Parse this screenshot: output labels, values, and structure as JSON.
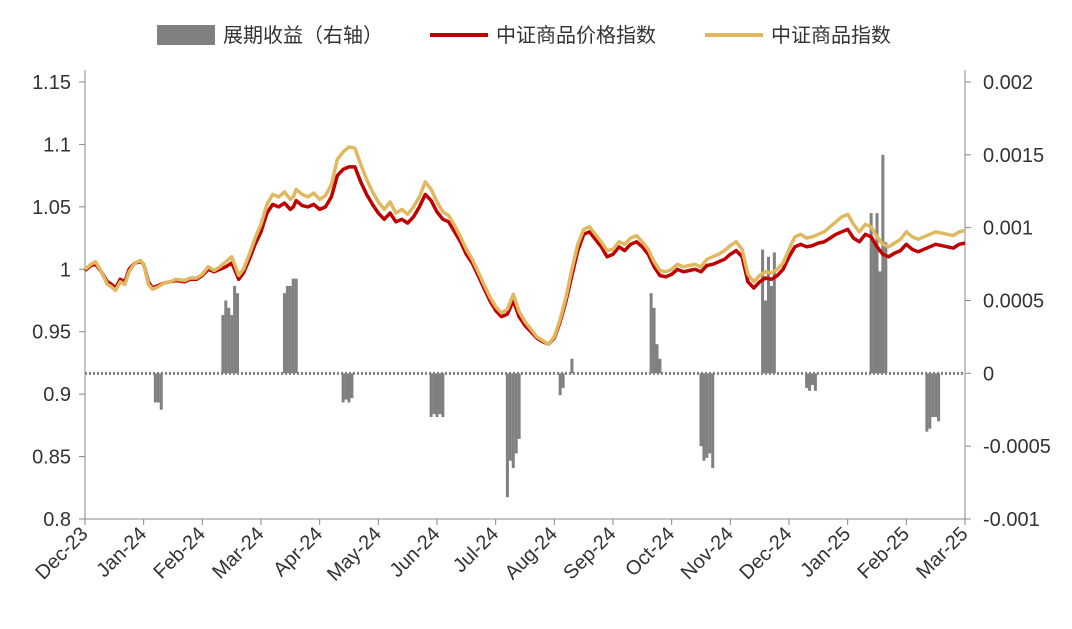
{
  "chart_data": {
    "type": "line",
    "legend": {
      "position": "top",
      "items": [
        {
          "label": "展期收益（右轴）",
          "kind": "bar",
          "color": "#808080"
        },
        {
          "label": "中证商品价格指数",
          "kind": "line",
          "color": "#c00000"
        },
        {
          "label": "中证商品指数",
          "kind": "line",
          "color": "#e0b860"
        }
      ]
    },
    "x_labels": [
      "Dec-23",
      "Jan-24",
      "Feb-24",
      "Mar-24",
      "Apr-24",
      "May-24",
      "Jun-24",
      "Jul-24",
      "Aug-24",
      "Sep-24",
      "Oct-24",
      "Nov-24",
      "Dec-24",
      "Jan-25",
      "Feb-25",
      "Mar-25"
    ],
    "left_axis": {
      "min": 0.8,
      "max": 1.15,
      "ticks": [
        0.8,
        0.85,
        0.9,
        0.95,
        1,
        1.05,
        1.1,
        1.15
      ],
      "tick_labels": [
        "0.8",
        "0.85",
        "0.9",
        "0.95",
        "1",
        "1.05",
        "1.1",
        "1.15"
      ]
    },
    "right_axis": {
      "min": -0.001,
      "max": 0.002,
      "ticks": [
        -0.001,
        -0.0005,
        0,
        0.0005,
        0.001,
        0.0015,
        0.002
      ],
      "tick_labels": [
        "-0.001",
        "-0.0005",
        "0",
        "0.0005",
        "0.001",
        "0.0015",
        "0.002"
      ]
    },
    "grid": false,
    "series": [
      {
        "name": "中证商品价格指数",
        "axis": "left",
        "color": "#c00000",
        "x": [
          0,
          0.1,
          0.18,
          0.28,
          0.38,
          0.45,
          0.52,
          0.6,
          0.68,
          0.75,
          0.85,
          0.95,
          1.0,
          1.08,
          1.15,
          1.25,
          1.35,
          1.45,
          1.55,
          1.7,
          1.8,
          1.9,
          2.0,
          2.1,
          2.2,
          2.3,
          2.4,
          2.5,
          2.55,
          2.62,
          2.7,
          2.8,
          2.9,
          3.0,
          3.1,
          3.2,
          3.3,
          3.4,
          3.5,
          3.55,
          3.6,
          3.7,
          3.8,
          3.9,
          4.0,
          4.1,
          4.2,
          4.3,
          4.4,
          4.5,
          4.6,
          4.7,
          4.8,
          4.9,
          5.0,
          5.1,
          5.2,
          5.3,
          5.4,
          5.5,
          5.6,
          5.7,
          5.8,
          5.9,
          6.0,
          6.1,
          6.2,
          6.3,
          6.4,
          6.5,
          6.6,
          6.7,
          6.8,
          6.9,
          7.0,
          7.1,
          7.2,
          7.3,
          7.4,
          7.5,
          7.6,
          7.7,
          7.8,
          7.9,
          8.0,
          8.1,
          8.2,
          8.3,
          8.4,
          8.5,
          8.6,
          8.7,
          8.8,
          8.9,
          9.0,
          9.1,
          9.2,
          9.3,
          9.4,
          9.5,
          9.6,
          9.7,
          9.8,
          9.9,
          10.0,
          10.1,
          10.2,
          10.3,
          10.4,
          10.5,
          10.6,
          10.7,
          10.8,
          10.9,
          11.0,
          11.1,
          11.2,
          11.3,
          11.4,
          11.5,
          11.6,
          11.7,
          11.8,
          11.9,
          12.0,
          12.1,
          12.2,
          12.3,
          12.4,
          12.5,
          12.6,
          12.7,
          12.8,
          12.9,
          13.0,
          13.1,
          13.2,
          13.3,
          13.4,
          13.5,
          13.6,
          13.7,
          13.8,
          13.9,
          14.0,
          14.1,
          14.2,
          14.3,
          14.4,
          14.5,
          14.6,
          14.7,
          14.8,
          14.9,
          15.0
        ],
        "values": [
          0.999,
          1.003,
          1.004,
          0.998,
          0.99,
          0.988,
          0.985,
          0.992,
          0.99,
          1.0,
          1.005,
          1.006,
          1.004,
          0.99,
          0.985,
          0.987,
          0.989,
          0.99,
          0.991,
          0.99,
          0.992,
          0.992,
          0.995,
          1.0,
          0.998,
          1.0,
          1.002,
          1.005,
          1.0,
          0.992,
          0.997,
          1.008,
          1.02,
          1.03,
          1.045,
          1.052,
          1.05,
          1.053,
          1.048,
          1.05,
          1.055,
          1.051,
          1.05,
          1.052,
          1.048,
          1.05,
          1.058,
          1.075,
          1.08,
          1.082,
          1.082,
          1.07,
          1.06,
          1.052,
          1.045,
          1.04,
          1.045,
          1.038,
          1.04,
          1.037,
          1.042,
          1.05,
          1.06,
          1.055,
          1.046,
          1.04,
          1.038,
          1.03,
          1.022,
          1.012,
          1.005,
          0.995,
          0.985,
          0.975,
          0.967,
          0.962,
          0.964,
          0.975,
          0.962,
          0.955,
          0.95,
          0.945,
          0.942,
          0.94,
          0.945,
          0.958,
          0.975,
          0.995,
          1.015,
          1.028,
          1.03,
          1.024,
          1.018,
          1.01,
          1.012,
          1.018,
          1.015,
          1.02,
          1.022,
          1.018,
          1.012,
          1.002,
          0.995,
          0.994,
          0.996,
          1.0,
          0.998,
          0.999,
          1.0,
          0.998,
          1.003,
          1.004,
          1.006,
          1.008,
          1.012,
          1.015,
          1.01,
          0.99,
          0.985,
          0.99,
          0.993,
          0.992,
          0.995,
          1.0,
          1.01,
          1.018,
          1.02,
          1.018,
          1.019,
          1.021,
          1.022,
          1.025,
          1.028,
          1.03,
          1.032,
          1.025,
          1.022,
          1.028,
          1.026,
          1.018,
          1.012,
          1.01,
          1.013,
          1.015,
          1.02,
          1.016,
          1.014,
          1.016,
          1.018,
          1.02,
          1.019,
          1.018,
          1.017,
          1.02,
          1.021
        ]
      },
      {
        "name": "中证商品指数",
        "axis": "left",
        "color": "#e0b860",
        "x": [
          0,
          0.1,
          0.18,
          0.28,
          0.38,
          0.45,
          0.52,
          0.6,
          0.68,
          0.75,
          0.85,
          0.95,
          1.0,
          1.08,
          1.15,
          1.25,
          1.35,
          1.45,
          1.55,
          1.7,
          1.8,
          1.9,
          2.0,
          2.1,
          2.2,
          2.3,
          2.4,
          2.5,
          2.55,
          2.62,
          2.7,
          2.8,
          2.9,
          3.0,
          3.1,
          3.2,
          3.3,
          3.4,
          3.5,
          3.55,
          3.6,
          3.7,
          3.8,
          3.9,
          4.0,
          4.1,
          4.2,
          4.3,
          4.4,
          4.5,
          4.6,
          4.7,
          4.8,
          4.9,
          5.0,
          5.1,
          5.2,
          5.3,
          5.4,
          5.5,
          5.6,
          5.7,
          5.8,
          5.9,
          6.0,
          6.1,
          6.2,
          6.3,
          6.4,
          6.5,
          6.6,
          6.7,
          6.8,
          6.9,
          7.0,
          7.1,
          7.2,
          7.3,
          7.4,
          7.5,
          7.6,
          7.7,
          7.8,
          7.9,
          8.0,
          8.1,
          8.2,
          8.3,
          8.4,
          8.5,
          8.6,
          8.7,
          8.8,
          8.9,
          9.0,
          9.1,
          9.2,
          9.3,
          9.4,
          9.5,
          9.6,
          9.7,
          9.8,
          9.9,
          10.0,
          10.1,
          10.2,
          10.3,
          10.4,
          10.5,
          10.6,
          10.7,
          10.8,
          10.9,
          11.0,
          11.1,
          11.2,
          11.3,
          11.4,
          11.5,
          11.6,
          11.7,
          11.8,
          11.9,
          12.0,
          12.1,
          12.2,
          12.3,
          12.4,
          12.5,
          12.6,
          12.7,
          12.8,
          12.9,
          13.0,
          13.1,
          13.2,
          13.3,
          13.4,
          13.5,
          13.6,
          13.7,
          13.8,
          13.9,
          14.0,
          14.1,
          14.2,
          14.3,
          14.4,
          14.5,
          14.6,
          14.7,
          14.8,
          14.9,
          15.0
        ],
        "values": [
          1.0,
          1.004,
          1.006,
          0.998,
          0.988,
          0.986,
          0.983,
          0.99,
          0.988,
          0.998,
          1.005,
          1.007,
          1.004,
          0.988,
          0.984,
          0.986,
          0.989,
          0.99,
          0.992,
          0.991,
          0.993,
          0.993,
          0.996,
          1.002,
          0.999,
          1.002,
          1.006,
          1.01,
          1.004,
          0.995,
          1.0,
          1.012,
          1.025,
          1.036,
          1.052,
          1.06,
          1.058,
          1.062,
          1.056,
          1.058,
          1.064,
          1.06,
          1.058,
          1.061,
          1.056,
          1.059,
          1.068,
          1.088,
          1.094,
          1.098,
          1.097,
          1.084,
          1.072,
          1.062,
          1.054,
          1.048,
          1.054,
          1.045,
          1.048,
          1.044,
          1.05,
          1.058,
          1.07,
          1.064,
          1.054,
          1.046,
          1.043,
          1.035,
          1.026,
          1.016,
          1.008,
          0.998,
          0.988,
          0.978,
          0.97,
          0.965,
          0.968,
          0.98,
          0.966,
          0.958,
          0.952,
          0.946,
          0.943,
          0.94,
          0.946,
          0.96,
          0.978,
          1.0,
          1.02,
          1.032,
          1.034,
          1.028,
          1.022,
          1.015,
          1.016,
          1.022,
          1.02,
          1.025,
          1.027,
          1.022,
          1.016,
          1.006,
          0.999,
          0.998,
          1.0,
          1.004,
          1.002,
          1.003,
          1.004,
          1.002,
          1.008,
          1.01,
          1.012,
          1.015,
          1.019,
          1.022,
          1.016,
          0.996,
          0.99,
          0.995,
          0.998,
          0.997,
          1.0,
          1.005,
          1.016,
          1.026,
          1.028,
          1.025,
          1.026,
          1.028,
          1.03,
          1.034,
          1.038,
          1.042,
          1.044,
          1.036,
          1.03,
          1.036,
          1.034,
          1.026,
          1.02,
          1.018,
          1.021,
          1.024,
          1.03,
          1.026,
          1.024,
          1.026,
          1.028,
          1.03,
          1.029,
          1.028,
          1.027,
          1.03,
          1.031
        ]
      },
      {
        "name": "展期收益（右轴）",
        "axis": "right",
        "type": "bar",
        "color": "#808080",
        "x": [
          2.35,
          2.4,
          2.45,
          2.5,
          2.55,
          2.6,
          3.4,
          3.45,
          3.5,
          3.55,
          3.6,
          4.4,
          4.45,
          4.5,
          4.55,
          1.2,
          1.25,
          1.3,
          5.9,
          5.95,
          6.0,
          6.05,
          6.1,
          7.2,
          7.25,
          7.3,
          7.35,
          7.4,
          8.1,
          8.15,
          8.3,
          9.65,
          9.7,
          9.75,
          9.8,
          10.5,
          10.55,
          10.6,
          10.65,
          10.7,
          11.55,
          11.6,
          11.65,
          11.7,
          11.75,
          12.3,
          12.35,
          12.4,
          12.45,
          13.4,
          13.45,
          13.5,
          13.55,
          13.6,
          13.65,
          14.35,
          14.4,
          14.45,
          14.5,
          14.55
        ],
        "values": [
          0.0004,
          0.0005,
          0.00045,
          0.0004,
          0.0006,
          0.00055,
          0.00055,
          0.0006,
          0.0006,
          0.00065,
          0.00065,
          -0.0002,
          -0.00018,
          -0.0002,
          -0.00017,
          -0.0002,
          -0.0002,
          -0.00025,
          -0.0003,
          -0.00028,
          -0.0003,
          -0.00028,
          -0.0003,
          -0.00085,
          -0.0006,
          -0.00065,
          -0.00055,
          -0.00045,
          -0.00015,
          -0.0001,
          0.0001,
          0.00055,
          0.00045,
          0.0002,
          0.0001,
          -0.0005,
          -0.0006,
          -0.00058,
          -0.00055,
          -0.00065,
          0.00085,
          0.0005,
          0.0008,
          0.0006,
          0.00083,
          -0.0001,
          -0.00012,
          -8e-05,
          -0.00012,
          0.0011,
          0.0009,
          0.0011,
          0.0007,
          0.0015,
          0.0009,
          -0.0004,
          -0.00038,
          -0.0003,
          -0.0003,
          -0.00033
        ]
      }
    ]
  }
}
